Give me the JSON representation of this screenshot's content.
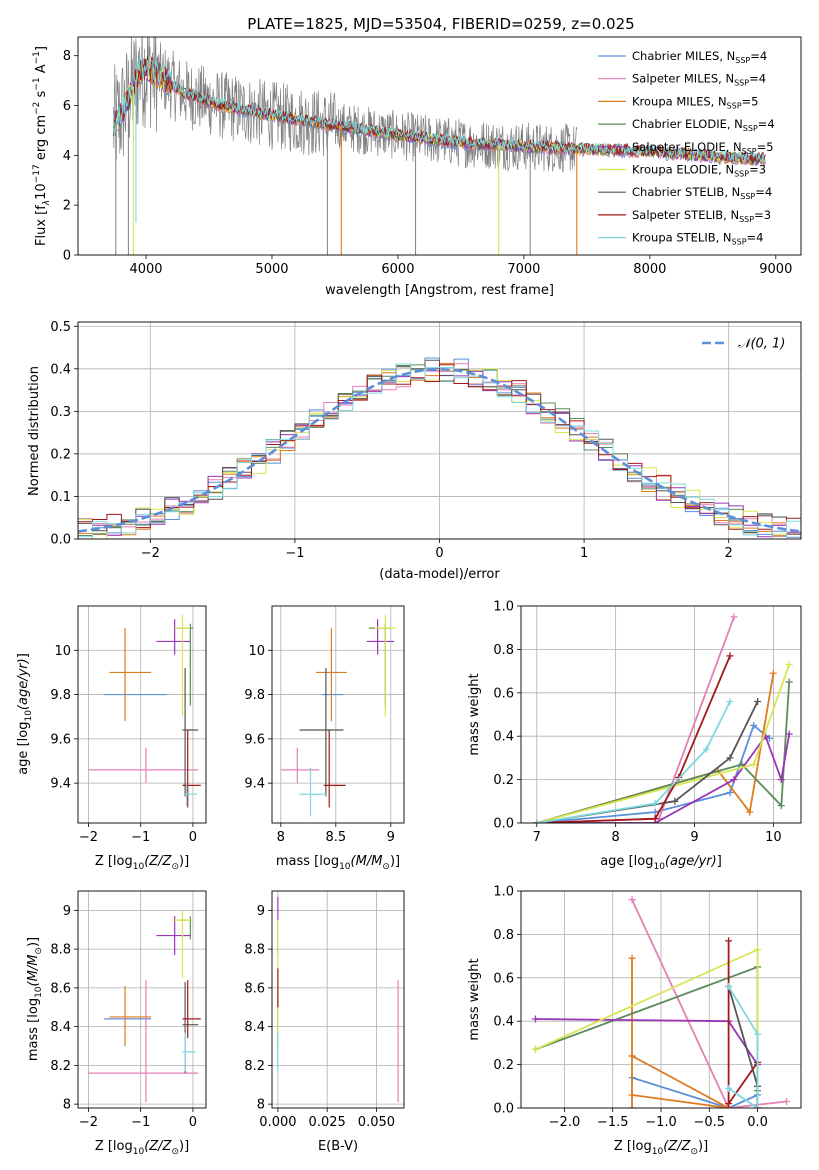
{
  "figure_title": "PLATE=1825, MJD=53504, FIBERID=0259, z=0.025",
  "legend_sub": "SSP",
  "colors": {
    "chabrier_miles": "#5b8fd9",
    "salpeter_miles": "#e57fb5",
    "kroupa_miles": "#df7a1f",
    "chabrier_elodie": "#5c8b5c",
    "salpeter_elodie": "#9b34b5",
    "kroupa_elodie": "#d8e550",
    "chabrier_stelib": "#555555",
    "salpeter_stelib": "#a31919",
    "kroupa_stelib": "#7dd8e0",
    "data": "#808080",
    "gauss": "#5b8fd9"
  },
  "chart_data": [
    {
      "id": "spectrum",
      "type": "line",
      "xlabel": "wavelength [Angstrom, rest frame]",
      "ylabel_main": "Flux [f",
      "ylabel_sub1": "λ",
      "ylabel_mid": "10",
      "ylabel_exp1": "−17",
      "ylabel_mid2": " erg cm",
      "ylabel_exp2": "−2",
      "ylabel_mid3": " s",
      "ylabel_exp3": "−1",
      "ylabel_end": " A",
      "ylabel_exp4": "−1",
      "ylabel_close": "]",
      "xlim": [
        3460,
        9200
      ],
      "ylim": [
        0,
        8.75
      ],
      "xticks": [
        4000,
        5000,
        6000,
        7000,
        8000,
        9000
      ],
      "yticks": [
        0,
        2,
        4,
        6,
        8
      ],
      "grid": false,
      "legend_position": "top-right",
      "series": [
        {
          "name": "Chabrier MILES, N",
          "nssp": "=4",
          "color_key": "chabrier_miles"
        },
        {
          "name": "Salpeter MILES, N",
          "nssp": "=4",
          "color_key": "salpeter_miles"
        },
        {
          "name": "Kroupa MILES, N",
          "nssp": "=5",
          "color_key": "kroupa_miles"
        },
        {
          "name": "Chabrier ELODIE, N",
          "nssp": "=4",
          "color_key": "chabrier_elodie"
        },
        {
          "name": "Salpeter ELODIE, N",
          "nssp": "=5",
          "color_key": "salpeter_elodie"
        },
        {
          "name": "Kroupa ELODIE, N",
          "nssp": "=3",
          "color_key": "kroupa_elodie"
        },
        {
          "name": "Chabrier STELIB, N",
          "nssp": "=4",
          "color_key": "chabrier_stelib"
        },
        {
          "name": "Salpeter STELIB, N",
          "nssp": "=3",
          "color_key": "salpeter_stelib"
        },
        {
          "name": "Kroupa STELIB, N",
          "nssp": "=4",
          "color_key": "kroupa_stelib"
        }
      ],
      "continuum": [
        [
          3740,
          5.2
        ],
        [
          3800,
          5.6
        ],
        [
          3880,
          6.5
        ],
        [
          3950,
          7.4
        ],
        [
          4000,
          7.5
        ],
        [
          4100,
          7.2
        ],
        [
          4300,
          6.5
        ],
        [
          4600,
          6.0
        ],
        [
          5000,
          5.6
        ],
        [
          5500,
          5.2
        ],
        [
          6000,
          4.8
        ],
        [
          6500,
          4.5
        ],
        [
          7000,
          4.35
        ],
        [
          7500,
          4.25
        ],
        [
          8000,
          4.15
        ],
        [
          8500,
          3.95
        ],
        [
          8900,
          3.85
        ]
      ],
      "model_dropouts": [
        {
          "x": 3900,
          "ymin": 0,
          "color_key": "kroupa_elodie"
        },
        {
          "x": 3920,
          "ymin": 1.3,
          "color_key": "kroupa_stelib"
        },
        {
          "x": 5550,
          "ymin": 0,
          "color_key": "kroupa_miles"
        },
        {
          "x": 6800,
          "ymin": 0,
          "color_key": "kroupa_elodie"
        },
        {
          "x": 7420,
          "ymin": 0,
          "color_key": "kroupa_miles"
        }
      ],
      "data_dropouts": [
        3760,
        3860,
        5440,
        6140,
        7050
      ]
    },
    {
      "id": "residuals",
      "type": "histogram",
      "xlabel": "(data-model)/error",
      "ylabel": "Normed distribution",
      "xlim": [
        -2.5,
        2.5
      ],
      "ylim": [
        0,
        0.51
      ],
      "xticks": [
        -2,
        -1,
        0,
        1,
        2
      ],
      "yticks": [
        0.0,
        0.1,
        0.2,
        0.3,
        0.4,
        0.5
      ],
      "grid": true,
      "legend_position": "top-right",
      "gauss_label": "𝒩(0, 1)",
      "bin_width": 0.1
    },
    {
      "id": "age_vs_Z",
      "type": "scatter",
      "xlabel_pre": "Z [log",
      "xlabel_sub": "10",
      "xlabel_post": "(Z/Z",
      "xlabel_sun": "⊙",
      "xlabel_end": ")]",
      "ylabel": "age  [log10(age/yr)]",
      "xlim": [
        -2.2,
        0.25
      ],
      "ylim": [
        9.22,
        10.2
      ],
      "xticks": [
        -2,
        -1,
        0
      ],
      "yticks": [
        9.4,
        9.6,
        9.8,
        10.0
      ],
      "grid": true,
      "points": [
        {
          "c": "chabrier_miles",
          "x": -1.0,
          "y": 9.8,
          "dxl": 0.7,
          "dxr": 0.5,
          "dyl": 0,
          "dyh": 0
        },
        {
          "c": "salpeter_miles",
          "x": -0.9,
          "y": 9.46,
          "dxl": 1.1,
          "dxr": 1.0,
          "dyl": 0.06,
          "dyh": 0.1
        },
        {
          "c": "kroupa_miles",
          "x": -1.3,
          "y": 9.9,
          "dxl": 0.3,
          "dxr": 0.5,
          "dyl": 0.22,
          "dyh": 0.2
        },
        {
          "c": "chabrier_elodie",
          "x": -0.05,
          "y": 10.1,
          "dxl": 0.25,
          "dxr": 0.05,
          "dyl": 0.35,
          "dyh": 0.02
        },
        {
          "c": "salpeter_elodie",
          "x": -0.35,
          "y": 10.04,
          "dxl": 0.35,
          "dxr": 0.3,
          "dyl": 0.06,
          "dyh": 0.1
        },
        {
          "c": "kroupa_elodie",
          "x": -0.2,
          "y": 10.1,
          "dxl": 0.15,
          "dxr": 0.15,
          "dyl": 0.4,
          "dyh": 0.06
        },
        {
          "c": "chabrier_stelib",
          "x": -0.15,
          "y": 9.64,
          "dxl": 0.05,
          "dxr": 0.25,
          "dyl": 0.3,
          "dyh": 0.28
        },
        {
          "c": "salpeter_stelib",
          "x": -0.1,
          "y": 9.39,
          "dxl": 0.1,
          "dxr": 0.25,
          "dyl": 0.1,
          "dyh": 0.25
        },
        {
          "c": "kroupa_stelib",
          "x": -0.12,
          "y": 9.35,
          "dxl": 0.05,
          "dxr": 0.2,
          "dyl": 0.05,
          "dyh": 0.05
        }
      ]
    },
    {
      "id": "age_vs_mass",
      "type": "scatter",
      "xlabel_pre": "mass [log",
      "xlabel_sub": "10",
      "xlabel_post": "(M/M",
      "xlabel_sun": "⊙",
      "xlabel_end": ")]",
      "xlim": [
        7.92,
        9.12
      ],
      "ylim": [
        9.22,
        10.2
      ],
      "xticks": [
        8.0,
        8.5,
        9.0
      ],
      "yticks": [
        9.4,
        9.6,
        9.8,
        10.0
      ],
      "grid": true,
      "points": [
        {
          "c": "chabrier_miles",
          "x": 8.45,
          "y": 9.8,
          "dxl": 0.08,
          "dxr": 0.12,
          "dyl": 0,
          "dyh": 0
        },
        {
          "c": "salpeter_miles",
          "x": 8.15,
          "y": 9.46,
          "dxl": 0.15,
          "dxr": 0.2,
          "dyl": 0.06,
          "dyh": 0.1
        },
        {
          "c": "kroupa_miles",
          "x": 8.46,
          "y": 9.9,
          "dxl": 0.14,
          "dxr": 0.14,
          "dyl": 0.22,
          "dyh": 0.2
        },
        {
          "c": "chabrier_elodie",
          "x": 8.95,
          "y": 10.1,
          "dxl": 0.15,
          "dxr": 0.05,
          "dyl": 0.35,
          "dyh": 0.02
        },
        {
          "c": "salpeter_elodie",
          "x": 8.88,
          "y": 10.04,
          "dxl": 0.1,
          "dxr": 0.15,
          "dyl": 0.06,
          "dyh": 0.1
        },
        {
          "c": "kroupa_elodie",
          "x": 8.95,
          "y": 10.1,
          "dxl": 0.1,
          "dxr": 0.1,
          "dyl": 0.4,
          "dyh": 0.06
        },
        {
          "c": "chabrier_stelib",
          "x": 8.41,
          "y": 9.64,
          "dxl": 0.24,
          "dxr": 0.16,
          "dyl": 0.3,
          "dyh": 0.28
        },
        {
          "c": "salpeter_stelib",
          "x": 8.44,
          "y": 9.39,
          "dxl": 0.05,
          "dxr": 0.15,
          "dyl": 0.1,
          "dyh": 0.25
        },
        {
          "c": "kroupa_stelib",
          "x": 8.27,
          "y": 9.35,
          "dxl": 0.1,
          "dxr": 0.15,
          "dyl": 0.1,
          "dyh": 0.12
        }
      ]
    },
    {
      "id": "weight_vs_age",
      "type": "line",
      "xlabel": "age  [log10(age/yr)]",
      "ylabel": "mass weight",
      "xlim": [
        6.8,
        10.35
      ],
      "ylim": [
        0,
        1.0
      ],
      "xticks": [
        7,
        8,
        9,
        10
      ],
      "yticks": [
        0.0,
        0.2,
        0.4,
        0.6,
        0.8,
        1.0
      ],
      "grid": true,
      "series": [
        {
          "c": "chabrier_miles",
          "pts": [
            [
              7.0,
              0.0
            ],
            [
              8.5,
              0.05
            ],
            [
              9.45,
              0.14
            ],
            [
              9.75,
              0.45
            ],
            [
              9.95,
              0.39
            ]
          ]
        },
        {
          "c": "salpeter_miles",
          "pts": [
            [
              7.0,
              0.0
            ],
            [
              8.55,
              0.02
            ],
            [
              9.5,
              0.95
            ]
          ]
        },
        {
          "c": "kroupa_miles",
          "pts": [
            [
              7.0,
              0.0
            ],
            [
              9.3,
              0.24
            ],
            [
              9.7,
              0.05
            ],
            [
              10.0,
              0.69
            ]
          ]
        },
        {
          "c": "chabrier_elodie",
          "pts": [
            [
              7.0,
              0.0
            ],
            [
              9.6,
              0.27
            ],
            [
              10.1,
              0.08
            ],
            [
              10.2,
              0.65
            ]
          ]
        },
        {
          "c": "salpeter_elodie",
          "pts": [
            [
              7.0,
              0.0
            ],
            [
              8.5,
              0.0
            ],
            [
              9.5,
              0.2
            ],
            [
              9.9,
              0.4
            ],
            [
              10.1,
              0.2
            ],
            [
              10.2,
              0.41
            ]
          ]
        },
        {
          "c": "kroupa_elodie",
          "pts": [
            [
              7.0,
              0.0
            ],
            [
              9.75,
              0.27
            ],
            [
              10.2,
              0.73
            ]
          ]
        },
        {
          "c": "chabrier_stelib",
          "pts": [
            [
              7.0,
              0.0
            ],
            [
              8.75,
              0.1
            ],
            [
              9.45,
              0.3
            ],
            [
              9.8,
              0.56
            ]
          ]
        },
        {
          "c": "salpeter_stelib",
          "pts": [
            [
              7.0,
              0.0
            ],
            [
              8.5,
              0.02
            ],
            [
              8.8,
              0.21
            ],
            [
              9.45,
              0.77
            ]
          ]
        },
        {
          "c": "kroupa_stelib",
          "pts": [
            [
              7.0,
              0.0
            ],
            [
              8.5,
              0.09
            ],
            [
              9.15,
              0.34
            ],
            [
              9.45,
              0.56
            ]
          ]
        }
      ]
    },
    {
      "id": "mass_vs_Z",
      "type": "scatter",
      "xlabel_pre": "Z [log",
      "xlabel_sub": "10",
      "xlabel_post": "(Z/Z",
      "xlabel_sun": "⊙",
      "xlabel_end": ")]",
      "ylabel": "mass [log10(M/M☉)]",
      "xlim": [
        -2.2,
        0.25
      ],
      "ylim": [
        7.98,
        9.1
      ],
      "xticks": [
        -2,
        -1,
        0
      ],
      "yticks": [
        8.0,
        8.2,
        8.4,
        8.6,
        8.8,
        9.0
      ],
      "grid": true,
      "points": [
        {
          "c": "chabrier_miles",
          "x": -1.3,
          "y": 8.44,
          "dxl": 0.4,
          "dxr": 0.5,
          "dyl": 0,
          "dyh": 0
        },
        {
          "c": "salpeter_miles",
          "x": -0.9,
          "y": 8.16,
          "dxl": 1.1,
          "dxr": 1.0,
          "dyl": 0.15,
          "dyh": 0.48
        },
        {
          "c": "kroupa_miles",
          "x": -1.3,
          "y": 8.45,
          "dxl": 0.3,
          "dxr": 0.5,
          "dyl": 0.15,
          "dyh": 0.16
        },
        {
          "c": "chabrier_elodie",
          "x": -0.05,
          "y": 8.95,
          "dxl": 0.25,
          "dxr": 0.05,
          "dyl": 0.1,
          "dyh": 0.02
        },
        {
          "c": "salpeter_elodie",
          "x": -0.35,
          "y": 8.87,
          "dxl": 0.35,
          "dxr": 0.3,
          "dyl": 0.1,
          "dyh": 0.1
        },
        {
          "c": "kroupa_elodie",
          "x": -0.2,
          "y": 8.95,
          "dxl": 0.2,
          "dxr": 0.2,
          "dyl": 0.3,
          "dyh": 0.05
        },
        {
          "c": "chabrier_stelib",
          "x": -0.15,
          "y": 8.41,
          "dxl": 0.05,
          "dxr": 0.25,
          "dyl": 0.25,
          "dyh": 0.22
        },
        {
          "c": "salpeter_stelib",
          "x": -0.1,
          "y": 8.44,
          "dxl": 0.1,
          "dxr": 0.25,
          "dyl": 0.1,
          "dyh": 0.2
        },
        {
          "c": "kroupa_stelib",
          "x": -0.15,
          "y": 8.27,
          "dxl": 0.05,
          "dxr": 0.2,
          "dyl": 0.1,
          "dyh": 0.1
        }
      ]
    },
    {
      "id": "mass_vs_ebv",
      "type": "scatter",
      "xlabel": "E(B-V)",
      "xlim": [
        -0.003,
        0.064
      ],
      "ylim": [
        7.98,
        9.1
      ],
      "xticks": [
        0.0,
        0.025,
        0.05
      ],
      "xtick_labels": [
        "0.000",
        "0.025",
        "0.050"
      ],
      "yticks": [
        8.0,
        8.2,
        8.4,
        8.6,
        8.8,
        9.0
      ],
      "grid": true,
      "points": [
        {
          "c": "chabrier_miles",
          "x": 0.0,
          "y": 8.44,
          "dyl": 0.26,
          "dyh": 0.1
        },
        {
          "c": "salpeter_miles",
          "x": 0.061,
          "y": 8.16,
          "dyl": 0.15,
          "dyh": 0.48
        },
        {
          "c": "kroupa_miles",
          "x": 0.0,
          "y": 8.45,
          "dyl": 0.15,
          "dyh": 0.16
        },
        {
          "c": "salpeter_elodie",
          "x": 0.0,
          "y": 8.87,
          "dyl": 0.1,
          "dyh": 0.2
        },
        {
          "c": "kroupa_elodie",
          "x": 0.0,
          "y": 8.85,
          "dyl": 0.5,
          "dyh": 0.1
        },
        {
          "c": "salpeter_stelib",
          "x": 0.0,
          "y": 8.6,
          "dyl": 0.1,
          "dyh": 0.1
        },
        {
          "c": "kroupa_stelib",
          "x": 0.0,
          "y": 8.27,
          "dyl": 0.1,
          "dyh": 0.1
        }
      ]
    },
    {
      "id": "weight_vs_Z",
      "type": "line",
      "xlabel_pre": "Z [log",
      "xlabel_sub": "10",
      "xlabel_post": "(Z/Z",
      "xlabel_sun": "⊙",
      "xlabel_end": ")]",
      "ylabel": "mass weight",
      "xlim": [
        -2.45,
        0.45
      ],
      "ylim": [
        0,
        1.0
      ],
      "xticks": [
        -2.0,
        -1.5,
        -1.0,
        -0.5,
        0.0
      ],
      "xtick_labels": [
        "−2.0",
        "−1.5",
        "−1.0",
        "−0.5",
        "0.0"
      ],
      "yticks": [
        0.0,
        0.2,
        0.4,
        0.6,
        0.8,
        1.0
      ],
      "grid": true,
      "series": [
        {
          "c": "chabrier_miles",
          "pts": [
            [
              -1.3,
              0.14
            ],
            [
              -0.3,
              0.0
            ],
            [
              0.0,
              0.06
            ]
          ]
        },
        {
          "c": "salpeter_miles",
          "pts": [
            [
              -1.3,
              0.96
            ],
            [
              -0.3,
              0.0
            ],
            [
              0.3,
              0.03
            ]
          ]
        },
        {
          "c": "kroupa_miles",
          "pts": [
            [
              -1.3,
              0.69
            ],
            [
              -1.3,
              0.06
            ],
            [
              -0.3,
              0.0
            ],
            [
              -1.3,
              0.24
            ],
            [
              -1.3,
              0.0
            ]
          ]
        },
        {
          "c": "chabrier_elodie",
          "pts": [
            [
              -2.3,
              0.27
            ],
            [
              0.0,
              0.65
            ],
            [
              0.0,
              0.08
            ]
          ]
        },
        {
          "c": "salpeter_elodie",
          "pts": [
            [
              -2.3,
              0.41
            ],
            [
              -0.3,
              0.4
            ],
            [
              0.0,
              0.2
            ],
            [
              0.0,
              0.0
            ]
          ]
        },
        {
          "c": "kroupa_elodie",
          "pts": [
            [
              -2.3,
              0.27
            ],
            [
              0.0,
              0.73
            ],
            [
              0.0,
              0.0
            ]
          ]
        },
        {
          "c": "chabrier_stelib",
          "pts": [
            [
              -0.3,
              0.56
            ],
            [
              0.0,
              0.1
            ],
            [
              0.0,
              0.0
            ]
          ]
        },
        {
          "c": "salpeter_stelib",
          "pts": [
            [
              -0.3,
              0.77
            ],
            [
              -0.3,
              0.02
            ],
            [
              0.0,
              0.21
            ],
            [
              0.0,
              0.0
            ]
          ]
        },
        {
          "c": "kroupa_stelib",
          "pts": [
            [
              -0.3,
              0.56
            ],
            [
              0.0,
              0.34
            ],
            [
              0.0,
              0.0
            ],
            [
              -0.3,
              0.09
            ]
          ]
        }
      ]
    }
  ]
}
